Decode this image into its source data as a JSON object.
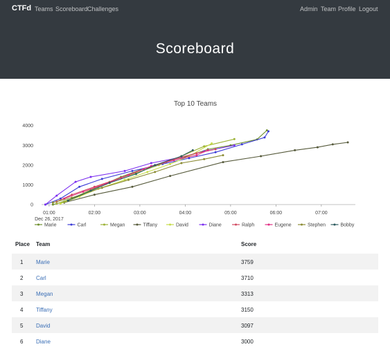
{
  "nav": {
    "brand": "CTFd",
    "left": [
      "Teams",
      "Scoreboard",
      "Challenges"
    ],
    "right": [
      "Admin",
      "Team",
      "Profile",
      "Logout"
    ]
  },
  "page": {
    "title": "Scoreboard"
  },
  "chart_data": {
    "type": "line",
    "title": "Top 10 Teams",
    "xlabel": "",
    "ylabel": "",
    "x_ticks": [
      "01:00",
      "02:00",
      "03:00",
      "04:00",
      "05:00",
      "06:00",
      "07:00"
    ],
    "x_subtick": "Dec 26, 2017",
    "y_ticks": [
      0,
      1000,
      2000,
      3000,
      4000
    ],
    "xlim": [
      "00:50",
      "07:45"
    ],
    "ylim": [
      0,
      4200
    ],
    "grid": false,
    "legend_position": "bottom",
    "series": [
      {
        "name": "Marie",
        "color": "#6e8f2c",
        "points": [
          [
            "01:05",
            0
          ],
          [
            "01:20",
            150
          ],
          [
            "01:40",
            420
          ],
          [
            "02:05",
            900
          ],
          [
            "02:35",
            1400
          ],
          [
            "03:00",
            1750
          ],
          [
            "03:35",
            2150
          ],
          [
            "04:00",
            2400
          ],
          [
            "04:30",
            2800
          ],
          [
            "05:00",
            3000
          ],
          [
            "05:35",
            3300
          ],
          [
            "05:48",
            3759
          ]
        ]
      },
      {
        "name": "Carl",
        "color": "#3b3bd6",
        "points": [
          [
            "00:55",
            0
          ],
          [
            "01:15",
            300
          ],
          [
            "01:40",
            900
          ],
          [
            "02:10",
            1300
          ],
          [
            "02:50",
            1700
          ],
          [
            "03:30",
            2050
          ],
          [
            "04:05",
            2350
          ],
          [
            "04:40",
            2650
          ],
          [
            "05:15",
            3050
          ],
          [
            "05:45",
            3400
          ],
          [
            "05:50",
            3710
          ]
        ]
      },
      {
        "name": "Megan",
        "color": "#9cb236",
        "points": [
          [
            "01:10",
            50
          ],
          [
            "01:30",
            300
          ],
          [
            "01:55",
            750
          ],
          [
            "02:20",
            1150
          ],
          [
            "02:55",
            1600
          ],
          [
            "03:25",
            2000
          ],
          [
            "03:55",
            2450
          ],
          [
            "04:25",
            2950
          ],
          [
            "05:05",
            3313
          ]
        ]
      },
      {
        "name": "Tiffany",
        "color": "#55593a",
        "points": [
          [
            "01:20",
            100
          ],
          [
            "02:00",
            500
          ],
          [
            "02:50",
            900
          ],
          [
            "03:40",
            1450
          ],
          [
            "04:50",
            2150
          ],
          [
            "05:40",
            2450
          ],
          [
            "06:25",
            2750
          ],
          [
            "06:55",
            2900
          ],
          [
            "07:15",
            3050
          ],
          [
            "07:35",
            3150
          ]
        ]
      },
      {
        "name": "David",
        "color": "#c6dc4a",
        "points": [
          [
            "01:15",
            50
          ],
          [
            "01:40",
            400
          ],
          [
            "02:05",
            800
          ],
          [
            "02:40",
            1250
          ],
          [
            "03:10",
            1650
          ],
          [
            "03:40",
            2050
          ],
          [
            "04:05",
            2450
          ],
          [
            "04:35",
            3097
          ]
        ]
      },
      {
        "name": "Diane",
        "color": "#7a2df0",
        "points": [
          [
            "00:55",
            0
          ],
          [
            "01:10",
            450
          ],
          [
            "01:35",
            1150
          ],
          [
            "01:55",
            1400
          ],
          [
            "02:40",
            1700
          ],
          [
            "03:15",
            2100
          ],
          [
            "03:55",
            2400
          ],
          [
            "04:25",
            2700
          ],
          [
            "05:05",
            3000
          ]
        ]
      },
      {
        "name": "Ralph",
        "color": "#d14a60",
        "points": [
          [
            "01:10",
            150
          ],
          [
            "01:30",
            500
          ],
          [
            "02:00",
            900
          ],
          [
            "02:35",
            1350
          ],
          [
            "03:05",
            1800
          ],
          [
            "03:40",
            2250
          ],
          [
            "04:15",
            2600
          ],
          [
            "04:40",
            2800
          ]
        ]
      },
      {
        "name": "Eugene",
        "color": "#e02d83",
        "points": [
          [
            "01:20",
            300
          ],
          [
            "01:45",
            650
          ],
          [
            "02:15",
            1050
          ],
          [
            "02:45",
            1500
          ],
          [
            "03:15",
            1950
          ],
          [
            "03:45",
            2250
          ],
          [
            "04:15",
            2500
          ],
          [
            "04:30",
            2750
          ]
        ]
      },
      {
        "name": "Stephen",
        "color": "#8b8b33",
        "points": [
          [
            "01:05",
            100
          ],
          [
            "01:30",
            350
          ],
          [
            "02:10",
            850
          ],
          [
            "02:45",
            1250
          ],
          [
            "03:20",
            1650
          ],
          [
            "03:55",
            2100
          ],
          [
            "04:25",
            2300
          ],
          [
            "04:50",
            2500
          ]
        ]
      },
      {
        "name": "Bobby",
        "color": "#2b5a5e",
        "points": [
          [
            "01:25",
            200
          ],
          [
            "01:55",
            700
          ],
          [
            "02:20",
            1100
          ],
          [
            "02:55",
            1550
          ],
          [
            "03:20",
            2000
          ],
          [
            "03:55",
            2450
          ],
          [
            "04:10",
            2750
          ]
        ]
      }
    ]
  },
  "table": {
    "headers": {
      "place": "Place",
      "team": "Team",
      "score": "Score"
    },
    "rows": [
      {
        "place": "1",
        "team": "Marie",
        "score": "3759"
      },
      {
        "place": "2",
        "team": "Carl",
        "score": "3710"
      },
      {
        "place": "3",
        "team": "Megan",
        "score": "3313"
      },
      {
        "place": "4",
        "team": "Tiffany",
        "score": "3150"
      },
      {
        "place": "5",
        "team": "David",
        "score": "3097"
      },
      {
        "place": "6",
        "team": "Diane",
        "score": "3000"
      }
    ]
  }
}
